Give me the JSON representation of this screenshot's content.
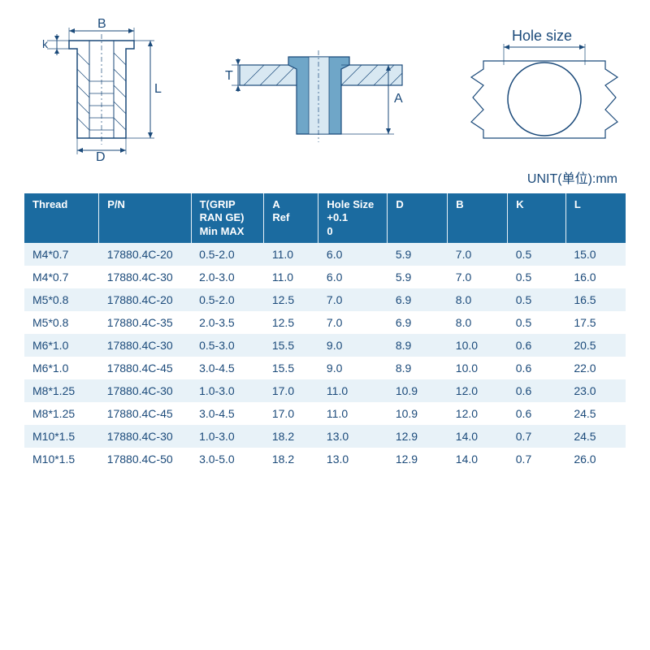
{
  "unit_label": "UNIT(单位):mm",
  "diagram_labels": {
    "B": "B",
    "k": "k",
    "L": "L",
    "D": "D",
    "T": "T",
    "A": "A",
    "Hole_size": "Hole size"
  },
  "colors": {
    "header_bg": "#1b6ba0",
    "header_fg": "#ffffff",
    "row_odd_bg": "#e8f2f8",
    "row_even_bg": "#ffffff",
    "text": "#1b4a7a",
    "diagram_stroke": "#1b4a7a",
    "diagram_fill": "#d8e8f2"
  },
  "table": {
    "headers": {
      "thread": "Thread",
      "pn": "P/N",
      "t": "T(GRIP RAN GE) Min MAX",
      "a": "A\nRef",
      "hole": "Hole Size\n+0.1\n0",
      "d": "D",
      "b": "B",
      "k": "K",
      "l": "L"
    },
    "rows": [
      {
        "thread": "M4*0.7",
        "pn": "17880.4C-20",
        "t": "0.5-2.0",
        "a": "11.0",
        "hole": "6.0",
        "d": "5.9",
        "b": "7.0",
        "k": "0.5",
        "l": "15.0"
      },
      {
        "thread": "M4*0.7",
        "pn": "17880.4C-30",
        "t": "2.0-3.0",
        "a": "11.0",
        "hole": "6.0",
        "d": "5.9",
        "b": "7.0",
        "k": "0.5",
        "l": "16.0"
      },
      {
        "thread": "M5*0.8",
        "pn": "17880.4C-20",
        "t": "0.5-2.0",
        "a": "12.5",
        "hole": "7.0",
        "d": "6.9",
        "b": "8.0",
        "k": "0.5",
        "l": "16.5"
      },
      {
        "thread": "M5*0.8",
        "pn": "17880.4C-35",
        "t": "2.0-3.5",
        "a": "12.5",
        "hole": "7.0",
        "d": "6.9",
        "b": "8.0",
        "k": "0.5",
        "l": "17.5"
      },
      {
        "thread": "M6*1.0",
        "pn": "17880.4C-30",
        "t": "0.5-3.0",
        "a": "15.5",
        "hole": "9.0",
        "d": "8.9",
        "b": "10.0",
        "k": "0.6",
        "l": "20.5"
      },
      {
        "thread": "M6*1.0",
        "pn": "17880.4C-45",
        "t": "3.0-4.5",
        "a": "15.5",
        "hole": "9.0",
        "d": "8.9",
        "b": "10.0",
        "k": "0.6",
        "l": "22.0"
      },
      {
        "thread": "M8*1.25",
        "pn": "17880.4C-30",
        "t": "1.0-3.0",
        "a": "17.0",
        "hole": "11.0",
        "d": "10.9",
        "b": "12.0",
        "k": "0.6",
        "l": "23.0"
      },
      {
        "thread": "M8*1.25",
        "pn": "17880.4C-45",
        "t": "3.0-4.5",
        "a": "17.0",
        "hole": "11.0",
        "d": "10.9",
        "b": "12.0",
        "k": "0.6",
        "l": "24.5"
      },
      {
        "thread": "M10*1.5",
        "pn": "17880.4C-30",
        "t": "1.0-3.0",
        "a": "18.2",
        "hole": "13.0",
        "d": "12.9",
        "b": "14.0",
        "k": "0.7",
        "l": "24.5"
      },
      {
        "thread": "M10*1.5",
        "pn": "17880.4C-50",
        "t": "3.0-5.0",
        "a": "18.2",
        "hole": "13.0",
        "d": "12.9",
        "b": "14.0",
        "k": "0.7",
        "l": "26.0"
      }
    ]
  }
}
